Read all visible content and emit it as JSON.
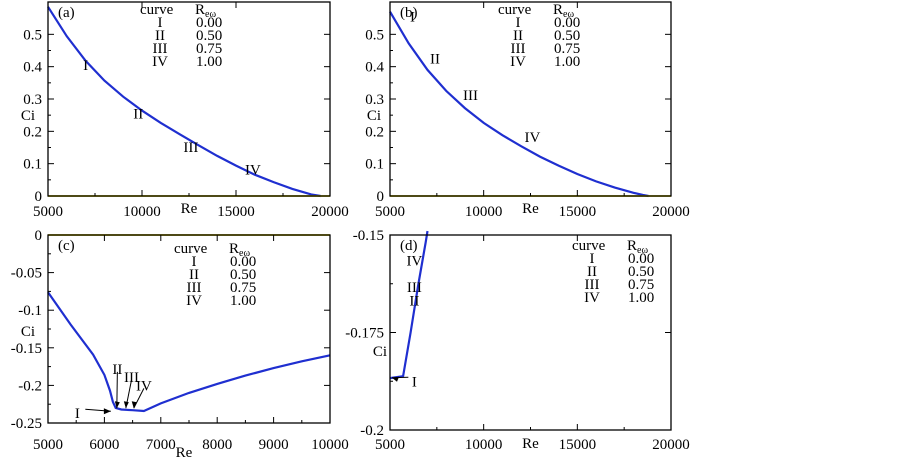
{
  "colors": {
    "curve": "#1f2fd0",
    "zero_line": "#d6c300",
    "frame": "#000000"
  },
  "chart_data": [
    {
      "panel": "(a)",
      "type": "line",
      "xlabel": "Re",
      "ylabel": "Ci",
      "xlim": [
        5000,
        20000
      ],
      "ylim": [
        0,
        0.6
      ],
      "xticks": [
        "5000",
        "10000",
        "15000",
        "20000"
      ],
      "yticks": [
        "0",
        "0.1",
        "0.2",
        "0.3",
        "0.4",
        "0.5"
      ],
      "legend": {
        "header": [
          "curve",
          "Reω"
        ],
        "rows": [
          [
            "I",
            "0.00"
          ],
          [
            "II",
            "0.50"
          ],
          [
            "III",
            "0.75"
          ],
          [
            "IV",
            "1.00"
          ]
        ]
      },
      "series": [
        {
          "x": [
            5000,
            6000,
            7000,
            8000,
            9000,
            10000,
            11000,
            12000,
            13000,
            14000,
            15000,
            16000,
            17000,
            18000,
            19000,
            19500
          ],
          "y": [
            0.585,
            0.494,
            0.418,
            0.357,
            0.307,
            0.264,
            0.226,
            0.191,
            0.157,
            0.124,
            0.094,
            0.066,
            0.043,
            0.022,
            0.005,
            0.0
          ]
        },
        {
          "x": [
            5000,
            20000
          ],
          "y": [
            0,
            0
          ]
        }
      ],
      "labels": [
        {
          "text": "I",
          "x": 7000,
          "y": 0.405
        },
        {
          "text": "II",
          "x": 9800,
          "y": 0.255
        },
        {
          "text": "III",
          "x": 12600,
          "y": 0.152
        },
        {
          "text": "IV",
          "x": 15900,
          "y": 0.082
        }
      ]
    },
    {
      "panel": "(b)",
      "type": "line",
      "xlabel": "Re",
      "ylabel": "Ci",
      "xlim": [
        5000,
        20000
      ],
      "ylim": [
        0,
        0.6
      ],
      "xticks": [
        "5000",
        "10000",
        "15000",
        "20000"
      ],
      "yticks": [
        "0",
        "0.1",
        "0.2",
        "0.3",
        "0.4",
        "0.5"
      ],
      "legend": {
        "header": [
          "curve",
          "Reω"
        ],
        "rows": [
          [
            "I",
            "0.00"
          ],
          [
            "II",
            "0.50"
          ],
          [
            "III",
            "0.75"
          ],
          [
            "IV",
            "1.00"
          ]
        ]
      },
      "series": [
        {
          "x": [
            5000,
            6000,
            7000,
            8000,
            9000,
            10000,
            11000,
            12000,
            13000,
            14000,
            15000,
            16000,
            17000,
            18000,
            18500,
            18800
          ],
          "y": [
            0.57,
            0.472,
            0.39,
            0.325,
            0.272,
            0.226,
            0.188,
            0.154,
            0.122,
            0.094,
            0.068,
            0.045,
            0.026,
            0.01,
            0.003,
            0.0
          ]
        },
        {
          "x": [
            5000,
            20000
          ],
          "y": [
            0,
            0
          ]
        }
      ],
      "labels": [
        {
          "text": "I",
          "x": 6200,
          "y": 0.555
        },
        {
          "text": "II",
          "x": 7400,
          "y": 0.425
        },
        {
          "text": "III",
          "x": 9300,
          "y": 0.313
        },
        {
          "text": "IV",
          "x": 12600,
          "y": 0.183
        }
      ]
    },
    {
      "panel": "(c)",
      "type": "line",
      "xlabel": "Re",
      "ylabel": "Ci",
      "xlim": [
        5000,
        10000
      ],
      "ylim": [
        -0.25,
        0
      ],
      "xticks": [
        "5000",
        "6000",
        "7000",
        "8000",
        "9000",
        "10000"
      ],
      "yticks": [
        "-0.25",
        "-0.2",
        "-0.15",
        "-0.1",
        "-0.05",
        "0"
      ],
      "legend": {
        "header": [
          "curve",
          "Reω"
        ],
        "rows": [
          [
            "I",
            "0.00"
          ],
          [
            "II",
            "0.50"
          ],
          [
            "III",
            "0.75"
          ],
          [
            "IV",
            "1.00"
          ]
        ]
      },
      "series": [
        {
          "x": [
            5000,
            5400,
            5800,
            6000,
            6100,
            6150,
            6200,
            6300,
            6500,
            6700,
            7000,
            7500,
            8000,
            8500,
            9000,
            9500,
            10000
          ],
          "y": [
            -0.076,
            -0.119,
            -0.159,
            -0.186,
            -0.207,
            -0.222,
            -0.23,
            -0.232,
            -0.233,
            -0.234,
            -0.224,
            -0.21,
            -0.198,
            -0.187,
            -0.177,
            -0.168,
            -0.16
          ]
        },
        {
          "x": [
            5000,
            10000
          ],
          "y": [
            0,
            0
          ]
        }
      ],
      "labels": [
        {
          "text": "I",
          "x": 5520,
          "y": -0.237
        },
        {
          "text": "II",
          "x": 6230,
          "y": -0.178
        },
        {
          "text": "III",
          "x": 6480,
          "y": -0.189
        },
        {
          "text": "IV",
          "x": 6700,
          "y": -0.2
        }
      ]
    },
    {
      "panel": "(d)",
      "type": "line",
      "xlabel": "Re",
      "ylabel": "Ci",
      "xlim": [
        5000,
        20000
      ],
      "ylim": [
        -0.2,
        -0.15
      ],
      "xticks": [
        "5000",
        "10000",
        "15000",
        "20000"
      ],
      "yticks": [
        "-0.2",
        "-0.175",
        "-0.15"
      ],
      "legend": {
        "header": [
          "curve",
          "Reω"
        ],
        "rows": [
          [
            "I",
            "0.00"
          ],
          [
            "II",
            "0.50"
          ],
          [
            "III",
            "0.75"
          ],
          [
            "IV",
            "1.00"
          ]
        ]
      },
      "series": [
        {
          "x": [
            5000,
            5700,
            6100,
            6500,
            6900,
            7000
          ],
          "y": [
            -0.1867,
            -0.1862,
            -0.175,
            -0.163,
            -0.152,
            -0.149
          ]
        }
      ],
      "labels": [
        {
          "text": "I",
          "x": 6300,
          "y": -0.1875
        },
        {
          "text": "II",
          "x": 6300,
          "y": -0.1668
        },
        {
          "text": "III",
          "x": 6300,
          "y": -0.1633
        },
        {
          "text": "IV",
          "x": 6300,
          "y": -0.1565
        }
      ]
    }
  ]
}
